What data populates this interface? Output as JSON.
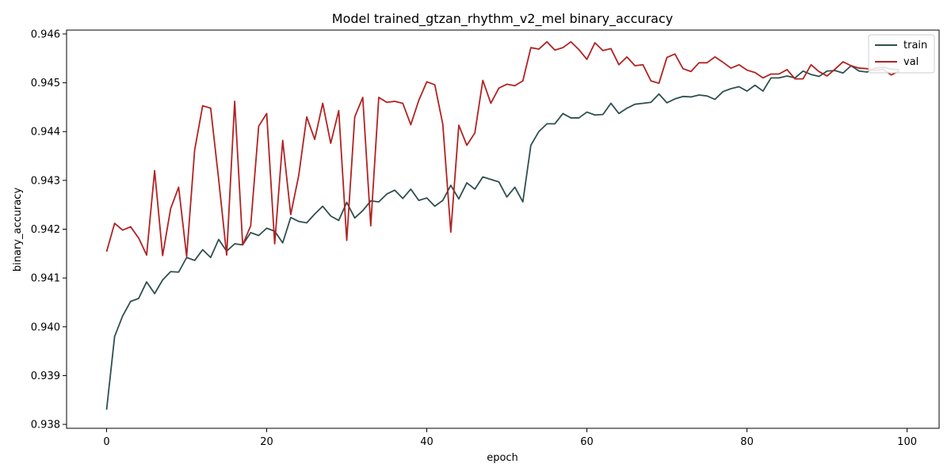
{
  "chart_data": {
    "type": "line",
    "title": "Model trained_gtzan_rhythm_v2_mel binary_accuracy",
    "xlabel": "epoch",
    "ylabel": "binary_accuracy",
    "xlim": [
      -5,
      104
    ],
    "ylim": [
      0.93792,
      0.94608
    ],
    "xticks": [
      0,
      20,
      40,
      60,
      80,
      100
    ],
    "yticks": [
      0.938,
      0.939,
      0.94,
      0.941,
      0.942,
      0.943,
      0.944,
      0.945,
      0.946
    ],
    "ytick_labels": [
      "0.938",
      "0.939",
      "0.940",
      "0.941",
      "0.942",
      "0.943",
      "0.944",
      "0.945",
      "0.946"
    ],
    "grid": false,
    "legend_position": "top-right",
    "series": [
      {
        "name": "train",
        "color": "#2f4f4f",
        "x": [
          0,
          1,
          2,
          3,
          4,
          5,
          6,
          7,
          8,
          9,
          10,
          11,
          12,
          13,
          14,
          15,
          16,
          17,
          18,
          19,
          20,
          21,
          22,
          23,
          24,
          25,
          26,
          27,
          28,
          29,
          30,
          31,
          32,
          33,
          34,
          35,
          36,
          37,
          38,
          39,
          40,
          41,
          42,
          43,
          44,
          45,
          46,
          47,
          48,
          49,
          50,
          51,
          52,
          53,
          54,
          55,
          56,
          57,
          58,
          59,
          60,
          61,
          62,
          63,
          64,
          65,
          66,
          67,
          68,
          69,
          70,
          71,
          72,
          73,
          74,
          75,
          76,
          77,
          78,
          79,
          80,
          81,
          82,
          83,
          84,
          85,
          86,
          87,
          88,
          89,
          90,
          91,
          92,
          93,
          94,
          95,
          96,
          97,
          98,
          99
        ],
        "values": [
          0.9383,
          0.9398,
          0.94022,
          0.94052,
          0.94058,
          0.94092,
          0.94068,
          0.94096,
          0.94113,
          0.94112,
          0.94142,
          0.94136,
          0.94158,
          0.94142,
          0.94179,
          0.94155,
          0.9417,
          0.94168,
          0.94193,
          0.94187,
          0.94202,
          0.94196,
          0.94172,
          0.94224,
          0.94216,
          0.94213,
          0.94231,
          0.94247,
          0.94227,
          0.94218,
          0.94255,
          0.94223,
          0.94238,
          0.94258,
          0.94256,
          0.94272,
          0.9428,
          0.94263,
          0.94282,
          0.94259,
          0.94264,
          0.94247,
          0.94259,
          0.9429,
          0.94262,
          0.94295,
          0.94282,
          0.94307,
          0.94302,
          0.94297,
          0.94266,
          0.94286,
          0.94256,
          0.94372,
          0.944,
          0.94416,
          0.94416,
          0.94437,
          0.94428,
          0.94428,
          0.9444,
          0.94434,
          0.94435,
          0.94458,
          0.94437,
          0.94448,
          0.94456,
          0.94458,
          0.9446,
          0.94477,
          0.94459,
          0.94467,
          0.94472,
          0.94471,
          0.94475,
          0.94473,
          0.94466,
          0.94482,
          0.94488,
          0.94492,
          0.94483,
          0.94495,
          0.94483,
          0.9451,
          0.9451,
          0.94514,
          0.9451,
          0.94524,
          0.94517,
          0.94513,
          0.94524,
          0.94525,
          0.9452,
          0.94535,
          0.94524,
          0.94522,
          0.9453,
          0.94532,
          0.94528,
          0.94527
        ]
      },
      {
        "name": "val",
        "color": "#b22222",
        "x": [
          0,
          1,
          2,
          3,
          4,
          5,
          6,
          7,
          8,
          9,
          10,
          11,
          12,
          13,
          14,
          15,
          16,
          17,
          18,
          19,
          20,
          21,
          22,
          23,
          24,
          25,
          26,
          27,
          28,
          29,
          30,
          31,
          32,
          33,
          34,
          35,
          36,
          37,
          38,
          39,
          40,
          41,
          42,
          43,
          44,
          45,
          46,
          47,
          48,
          49,
          50,
          51,
          52,
          53,
          54,
          55,
          56,
          57,
          58,
          59,
          60,
          61,
          62,
          63,
          64,
          65,
          66,
          67,
          68,
          69,
          70,
          71,
          72,
          73,
          74,
          75,
          76,
          77,
          78,
          79,
          80,
          81,
          82,
          83,
          84,
          85,
          86,
          87,
          88,
          89,
          90,
          91,
          92,
          93,
          94,
          95,
          96,
          97,
          98,
          99
        ],
        "values": [
          0.94154,
          0.94212,
          0.94198,
          0.94205,
          0.94182,
          0.94147,
          0.9432,
          0.94146,
          0.94242,
          0.94286,
          0.94144,
          0.94362,
          0.94453,
          0.94448,
          0.94302,
          0.94147,
          0.94462,
          0.94168,
          0.94207,
          0.94411,
          0.94437,
          0.9417,
          0.94382,
          0.9423,
          0.9431,
          0.9443,
          0.94384,
          0.94458,
          0.94376,
          0.94443,
          0.94177,
          0.9443,
          0.9447,
          0.94207,
          0.9447,
          0.9446,
          0.94462,
          0.94458,
          0.94414,
          0.94464,
          0.94502,
          0.94496,
          0.94415,
          0.94194,
          0.94413,
          0.94372,
          0.94397,
          0.94505,
          0.94458,
          0.94489,
          0.94497,
          0.94494,
          0.94504,
          0.94572,
          0.94569,
          0.94584,
          0.94567,
          0.94572,
          0.94584,
          0.94568,
          0.94548,
          0.94582,
          0.94566,
          0.9457,
          0.94537,
          0.94553,
          0.94535,
          0.94537,
          0.94504,
          0.94499,
          0.94552,
          0.94559,
          0.94529,
          0.94523,
          0.94541,
          0.94541,
          0.94553,
          0.94542,
          0.9453,
          0.94537,
          0.94526,
          0.94521,
          0.9451,
          0.94518,
          0.94518,
          0.94527,
          0.94508,
          0.94508,
          0.94537,
          0.94523,
          0.94514,
          0.94528,
          0.94543,
          0.94535,
          0.9453,
          0.94529,
          0.94525,
          0.94528,
          0.94516,
          0.94524
        ]
      }
    ]
  }
}
